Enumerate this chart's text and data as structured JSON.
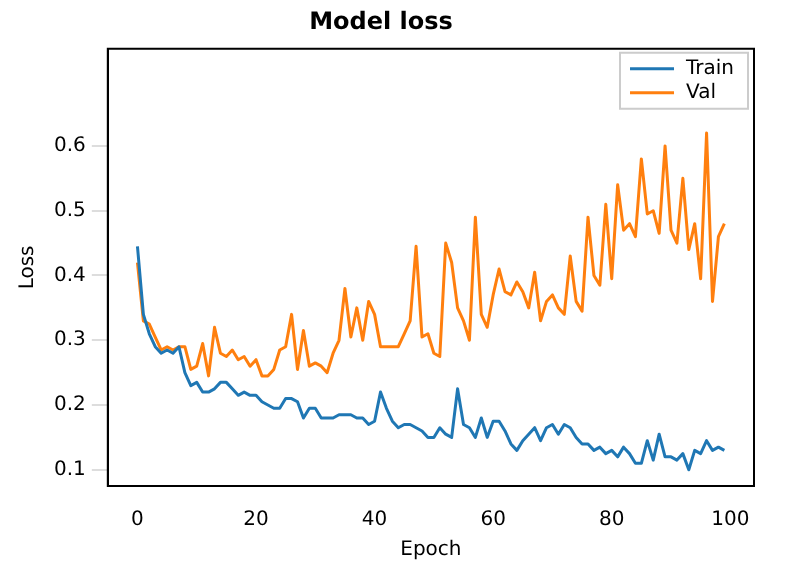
{
  "chart_data": {
    "type": "line",
    "title": "Model loss",
    "xlabel": "Epoch",
    "ylabel": "Loss",
    "x": [
      0,
      1,
      2,
      3,
      4,
      5,
      6,
      7,
      8,
      9,
      10,
      11,
      12,
      13,
      14,
      15,
      16,
      17,
      18,
      19,
      20,
      21,
      22,
      23,
      24,
      25,
      26,
      27,
      28,
      29,
      30,
      31,
      32,
      33,
      34,
      35,
      36,
      37,
      38,
      39,
      40,
      41,
      42,
      43,
      44,
      45,
      46,
      47,
      48,
      49,
      50,
      51,
      52,
      53,
      54,
      55,
      56,
      57,
      58,
      59,
      60,
      61,
      62,
      63,
      64,
      65,
      66,
      67,
      68,
      69,
      70,
      71,
      72,
      73,
      74,
      75,
      76,
      77,
      78,
      79,
      80,
      81,
      82,
      83,
      84,
      85,
      86,
      87,
      88,
      89,
      90,
      91,
      92,
      93,
      94,
      95,
      96,
      97,
      98,
      99
    ],
    "series": [
      {
        "name": "Train",
        "color": "#1f77b4",
        "values": [
          0.445,
          0.34,
          0.31,
          0.29,
          0.28,
          0.285,
          0.28,
          0.29,
          0.25,
          0.23,
          0.235,
          0.22,
          0.22,
          0.225,
          0.235,
          0.235,
          0.225,
          0.215,
          0.22,
          0.215,
          0.215,
          0.205,
          0.2,
          0.195,
          0.195,
          0.21,
          0.21,
          0.205,
          0.18,
          0.195,
          0.195,
          0.18,
          0.18,
          0.18,
          0.185,
          0.185,
          0.185,
          0.18,
          0.18,
          0.17,
          0.175,
          0.22,
          0.195,
          0.175,
          0.165,
          0.17,
          0.17,
          0.165,
          0.16,
          0.15,
          0.15,
          0.165,
          0.155,
          0.15,
          0.225,
          0.17,
          0.165,
          0.15,
          0.18,
          0.15,
          0.175,
          0.175,
          0.16,
          0.14,
          0.13,
          0.145,
          0.155,
          0.165,
          0.145,
          0.165,
          0.17,
          0.155,
          0.17,
          0.165,
          0.15,
          0.14,
          0.14,
          0.13,
          0.135,
          0.125,
          0.13,
          0.12,
          0.135,
          0.125,
          0.11,
          0.11,
          0.145,
          0.115,
          0.155,
          0.12,
          0.12,
          0.115,
          0.125,
          0.1,
          0.13,
          0.125,
          0.145,
          0.13,
          0.135,
          0.13
        ]
      },
      {
        "name": "Val",
        "color": "#ff7f0e",
        "values": [
          0.42,
          0.33,
          0.325,
          0.305,
          0.285,
          0.29,
          0.285,
          0.29,
          0.29,
          0.255,
          0.26,
          0.295,
          0.245,
          0.32,
          0.28,
          0.275,
          0.285,
          0.27,
          0.275,
          0.26,
          0.27,
          0.245,
          0.245,
          0.255,
          0.285,
          0.29,
          0.34,
          0.255,
          0.315,
          0.26,
          0.265,
          0.26,
          0.25,
          0.28,
          0.3,
          0.38,
          0.305,
          0.35,
          0.3,
          0.36,
          0.34,
          0.29,
          0.29,
          0.29,
          0.29,
          0.31,
          0.33,
          0.445,
          0.305,
          0.31,
          0.28,
          0.275,
          0.45,
          0.42,
          0.35,
          0.33,
          0.3,
          0.49,
          0.34,
          0.32,
          0.37,
          0.41,
          0.375,
          0.37,
          0.39,
          0.375,
          0.35,
          0.405,
          0.33,
          0.36,
          0.37,
          0.35,
          0.34,
          0.43,
          0.36,
          0.345,
          0.49,
          0.4,
          0.385,
          0.51,
          0.395,
          0.54,
          0.47,
          0.48,
          0.46,
          0.58,
          0.495,
          0.5,
          0.465,
          0.6,
          0.47,
          0.45,
          0.55,
          0.44,
          0.48,
          0.395,
          0.62,
          0.36,
          0.46,
          0.48
        ]
      }
    ],
    "xlim": [
      -5,
      104
    ],
    "xticks": [
      0,
      20,
      40,
      60,
      80,
      100
    ],
    "ylim": [
      0.075,
      0.75
    ],
    "yticks": [
      0.1,
      0.2,
      0.3,
      0.4,
      0.5,
      0.6
    ],
    "legend": "top right",
    "grid": false
  }
}
